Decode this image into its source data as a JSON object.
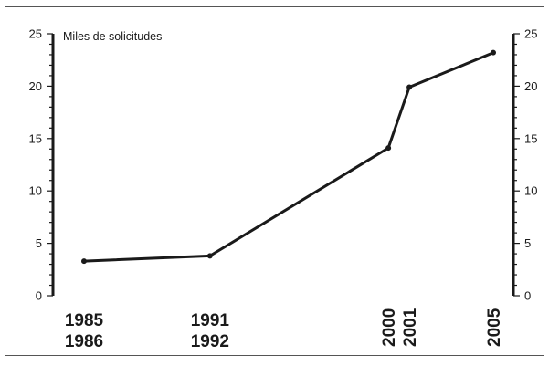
{
  "chart_data": {
    "type": "line",
    "title": "",
    "ylabel": "Miles de solicitudes",
    "xlabel": "",
    "ylim": [
      0,
      25
    ],
    "yticks": [
      0,
      5,
      10,
      15,
      20,
      25
    ],
    "minor_step": 1,
    "grid": false,
    "categories": [
      "1985 1986",
      "1991 1992",
      "2000",
      "2001",
      "2005"
    ],
    "x_labels": [
      {
        "lines": [
          "1985",
          "1986"
        ],
        "orientation": "horizontal"
      },
      {
        "lines": [
          "1991",
          "1992"
        ],
        "orientation": "horizontal"
      },
      {
        "lines": [
          "2000"
        ],
        "orientation": "vertical"
      },
      {
        "lines": [
          "2001"
        ],
        "orientation": "vertical"
      },
      {
        "lines": [
          "2005"
        ],
        "orientation": "vertical"
      }
    ],
    "series": [
      {
        "x": [
          1985.5,
          1991.5,
          2000,
          2001,
          2005
        ],
        "values": [
          3.3,
          3.8,
          14.1,
          19.9,
          23.2
        ]
      }
    ],
    "color": "#1a1a1a"
  }
}
